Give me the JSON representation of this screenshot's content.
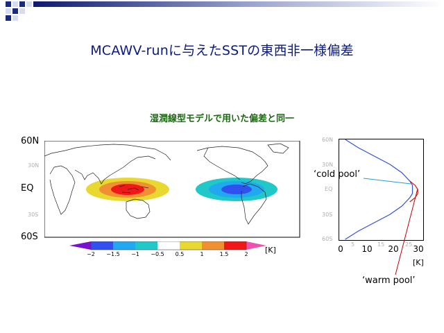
{
  "slide": {
    "title": "MCAWV-runに与えたSSTの東西非一様偏差",
    "subtitle": "湿潤線型モデルで用いた偏差と同一"
  },
  "map": {
    "lat_labels": {
      "n60": "60N",
      "n30": "30N",
      "eq": "EQ",
      "s30": "30S",
      "s60": "60S"
    },
    "warm_anomaly_center": "Indonesia / western Pacific (positive)",
    "cold_anomaly_center": "eastern Pacific (negative)"
  },
  "colorbar": {
    "ticks": [
      "−2",
      "−1.5",
      "−1",
      "−0.5",
      "0.5",
      "1",
      "1.5",
      "2"
    ],
    "unit": "[K]",
    "colors": [
      "#7a10d0",
      "#3050f0",
      "#20a8f0",
      "#20c8c8",
      "#ffffff",
      "#e8d830",
      "#f09030",
      "#f01818",
      "#f050b0"
    ]
  },
  "profile": {
    "lat_labels": {
      "n60": "60N",
      "n30": "30N",
      "eq": "EQ",
      "s30": "30S",
      "s60": "60S"
    },
    "x_ticks": [
      "0",
      "10",
      "20",
      "30"
    ],
    "faint_ticks": [
      "5",
      "15",
      "25"
    ],
    "unit": "[K]",
    "cold_label": "‘cold pool’",
    "warm_label": "‘warm pool’"
  },
  "chart_data": {
    "type": "line",
    "xlabel": "[K]",
    "ylabel": "",
    "xlim": [
      0,
      30
    ],
    "ylim": [
      -60,
      60
    ],
    "y_ticks": [
      "60N",
      "30N",
      "EQ",
      "30S",
      "60S"
    ],
    "series": [
      {
        "name": "cold pool",
        "color": "#3050e0",
        "points": [
          [
            2,
            60
          ],
          [
            7,
            50
          ],
          [
            13,
            40
          ],
          [
            19,
            30
          ],
          [
            23.5,
            20
          ],
          [
            26.5,
            10
          ],
          [
            27.5,
            5
          ],
          [
            27.5,
            0
          ],
          [
            27.5,
            -5
          ],
          [
            26.5,
            -10
          ],
          [
            23.5,
            -20
          ],
          [
            19,
            -30
          ],
          [
            13,
            -40
          ],
          [
            7,
            -50
          ],
          [
            2,
            -60
          ]
        ]
      },
      {
        "name": "warm pool",
        "color": "#e01010",
        "points": [
          [
            26.5,
            10
          ],
          [
            28.5,
            5
          ],
          [
            29.5,
            0
          ],
          [
            29.5,
            -5
          ],
          [
            28.5,
            -10
          ],
          [
            26.5,
            -15
          ]
        ]
      }
    ]
  },
  "theme": {
    "title_color": "#0a1a80",
    "subtitle_color": "#1a6a10",
    "cold_color": "#3050e0",
    "warm_color": "#e01010"
  }
}
